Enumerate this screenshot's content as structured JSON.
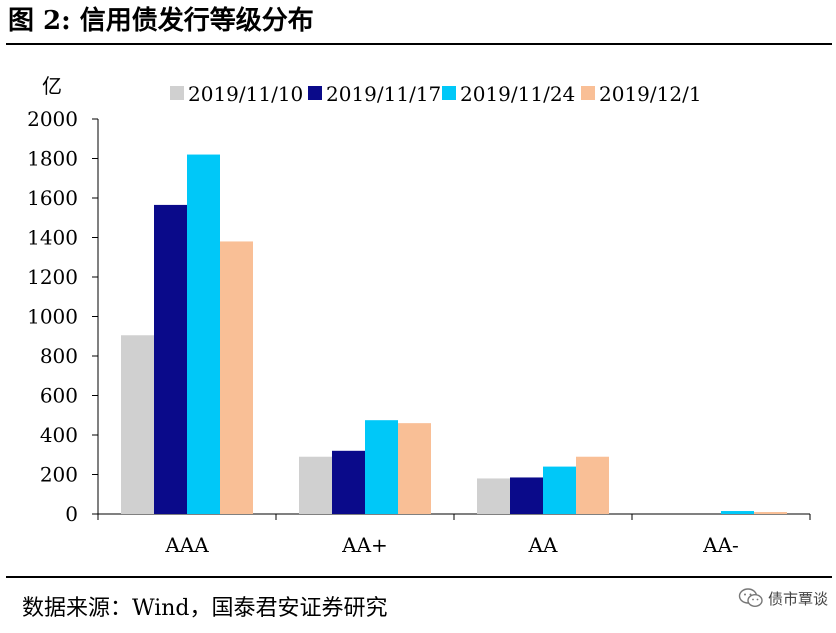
{
  "figure": {
    "title": "图 2:  信用债发行等级分布",
    "source": "数据来源：Wind，国泰君安证券研究",
    "watermark": "债市覃谈"
  },
  "chart_data": {
    "type": "bar",
    "unit_label": "亿",
    "categories": [
      "AAA",
      "AA+",
      "AA",
      "AA-"
    ],
    "series": [
      {
        "name": "2019/11/10",
        "color": "#d0d0d0",
        "values": [
          905,
          290,
          180,
          0
        ]
      },
      {
        "name": "2019/11/17",
        "color": "#0a0a8a",
        "values": [
          1565,
          320,
          185,
          0
        ]
      },
      {
        "name": "2019/11/24",
        "color": "#00c8f8",
        "values": [
          1820,
          475,
          240,
          15
        ]
      },
      {
        "name": "2019/12/1",
        "color": "#f9bf96",
        "values": [
          1380,
          460,
          290,
          10
        ]
      }
    ],
    "ylim": [
      0,
      2000
    ],
    "yticks": [
      0,
      200,
      400,
      600,
      800,
      1000,
      1200,
      1400,
      1600,
      1800,
      2000
    ],
    "legend_position": "top",
    "grid": false
  }
}
